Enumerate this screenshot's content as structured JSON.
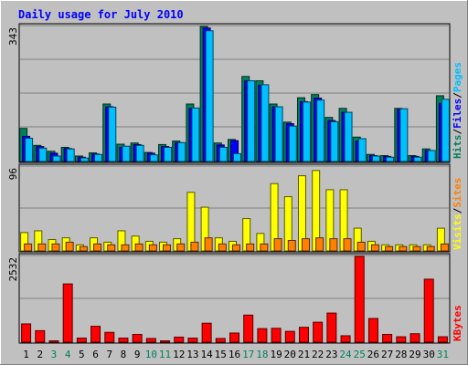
{
  "title": "Daily usage for July 2010",
  "colors": {
    "hits": "#00805C",
    "files": "#0000FF",
    "pages": "#00C0FF",
    "visits": "#FFFF00",
    "sites": "#FF8000",
    "kbytes": "#FF0000",
    "weekend_label": "#00805C",
    "weekday_label": "#000000",
    "title": "#0000FF",
    "panel": "#C0C0C0",
    "frame": "#C0C0C0"
  },
  "chart_data": [
    {
      "type": "bar",
      "panel": "hits-files-pages",
      "ymax_label": "343",
      "ylim": [
        0,
        343
      ],
      "categories": [
        "1",
        "2",
        "3",
        "4",
        "5",
        "6",
        "7",
        "8",
        "9",
        "10",
        "11",
        "12",
        "13",
        "14",
        "15",
        "16",
        "17",
        "18",
        "19",
        "20",
        "21",
        "22",
        "23",
        "24",
        "25",
        "26",
        "27",
        "28",
        "29",
        "30",
        "31"
      ],
      "weekend_days": [
        "3",
        "4",
        "10",
        "11",
        "17",
        "18",
        "24",
        "25",
        "31"
      ],
      "legend": [
        {
          "label": "Hits",
          "color": "#00805C"
        },
        {
          "label": "/",
          "color": "#000000"
        },
        {
          "label": "Files",
          "color": "#0000FF"
        },
        {
          "label": "/",
          "color": "#000000"
        },
        {
          "label": "Pages",
          "color": "#00C0FF"
        }
      ],
      "series": [
        {
          "name": "Hits",
          "values": [
            84,
            41,
            26,
            36,
            14,
            22,
            146,
            44,
            47,
            23,
            43,
            52,
            146,
            343,
            47,
            56,
            216,
            205,
            146,
            100,
            162,
            170,
            112,
            135,
            62,
            18,
            15,
            135,
            15,
            32,
            167
          ]
        },
        {
          "name": "Files",
          "values": [
            64,
            38,
            21,
            33,
            11,
            19,
            139,
            36,
            43,
            21,
            38,
            48,
            135,
            339,
            42,
            53,
            205,
            194,
            139,
            96,
            152,
            161,
            104,
            125,
            52,
            15,
            13,
            132,
            13,
            28,
            148
          ]
        },
        {
          "name": "Pages",
          "values": [
            59,
            34,
            14,
            32,
            9,
            18,
            138,
            39,
            41,
            17,
            36,
            48,
            136,
            332,
            36,
            20,
            205,
            195,
            139,
            90,
            151,
            156,
            101,
            125,
            58,
            14,
            11,
            134,
            11,
            28,
            158
          ]
        }
      ]
    },
    {
      "type": "bar",
      "panel": "visits-sites",
      "ymax_label": "96",
      "ylim": [
        0,
        96
      ],
      "categories": [
        "1",
        "2",
        "3",
        "4",
        "5",
        "6",
        "7",
        "8",
        "9",
        "10",
        "11",
        "12",
        "13",
        "14",
        "15",
        "16",
        "17",
        "18",
        "19",
        "20",
        "21",
        "22",
        "23",
        "24",
        "25",
        "26",
        "27",
        "28",
        "29",
        "30",
        "31"
      ],
      "legend": [
        {
          "label": "Visits",
          "color": "#FFFF00"
        },
        {
          "label": "/",
          "color": "#000000"
        },
        {
          "label": "Sites",
          "color": "#FF8000"
        }
      ],
      "series": [
        {
          "name": "Visits",
          "values": [
            21,
            23,
            13,
            15,
            7,
            15,
            10,
            23,
            17,
            11,
            10,
            14,
            67,
            50,
            15,
            11,
            37,
            20,
            77,
            62,
            86,
            92,
            70,
            70,
            26,
            11,
            7,
            7,
            7,
            7,
            26
          ]
        },
        {
          "name": "Sites",
          "values": [
            8,
            8,
            8,
            10,
            5,
            8,
            7,
            7,
            8,
            7,
            7,
            8,
            10,
            15,
            8,
            7,
            8,
            8,
            14,
            12,
            14,
            15,
            14,
            14,
            10,
            7,
            5,
            5,
            5,
            5,
            8
          ]
        }
      ]
    },
    {
      "type": "bar",
      "panel": "kbytes",
      "ymax_label": "2532",
      "ylim": [
        0,
        2532
      ],
      "categories": [
        "1",
        "2",
        "3",
        "4",
        "5",
        "6",
        "7",
        "8",
        "9",
        "10",
        "11",
        "12",
        "13",
        "14",
        "15",
        "16",
        "17",
        "18",
        "19",
        "20",
        "21",
        "22",
        "23",
        "24",
        "25",
        "26",
        "27",
        "28",
        "29",
        "30",
        "31"
      ],
      "legend": [
        {
          "label": "KBytes",
          "color": "#FF0000"
        }
      ],
      "series": [
        {
          "name": "KBytes",
          "values": [
            540,
            340,
            40,
            1720,
            120,
            470,
            290,
            120,
            230,
            110,
            40,
            150,
            120,
            560,
            110,
            270,
            800,
            400,
            410,
            320,
            440,
            590,
            860,
            190,
            2532,
            700,
            230,
            160,
            250,
            1860,
            160
          ]
        }
      ]
    }
  ]
}
